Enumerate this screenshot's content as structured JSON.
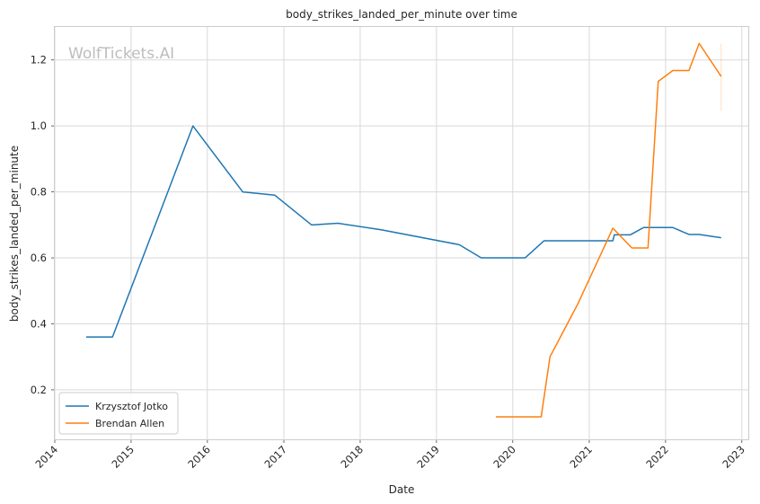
{
  "chart_data": {
    "type": "line",
    "title": "body_strikes_landed_per_minute over time",
    "xlabel": "Date",
    "ylabel": "body_strikes_landed_per_minute",
    "watermark": "WolfTickets.AI",
    "x_type": "date",
    "xlim": [
      "2014-01-01",
      "2023-02-01"
    ],
    "ylim": [
      0.05,
      1.3
    ],
    "x_ticks": [
      "2014",
      "2015",
      "2016",
      "2017",
      "2018",
      "2019",
      "2020",
      "2021",
      "2022",
      "2023"
    ],
    "y_ticks": [
      0.2,
      0.4,
      0.6,
      0.8,
      1.0,
      1.2
    ],
    "grid": true,
    "legend_position": "lower-left",
    "series": [
      {
        "name": "Krzysztof Jotko",
        "color": "#1f77b4",
        "points": [
          [
            "2014-05-31",
            0.36
          ],
          [
            "2014-10-04",
            0.36
          ],
          [
            "2015-10-24",
            1.0
          ],
          [
            "2016-06-18",
            0.8
          ],
          [
            "2016-11-19",
            0.79
          ],
          [
            "2017-05-13",
            0.7
          ],
          [
            "2017-09-16",
            0.705
          ],
          [
            "2018-04-14",
            0.685
          ],
          [
            "2019-04-20",
            0.64
          ],
          [
            "2019-08-03",
            0.6
          ],
          [
            "2020-02-29",
            0.6
          ],
          [
            "2020-05-30",
            0.652
          ],
          [
            "2021-04-24",
            0.652
          ],
          [
            "2021-05-01",
            0.67
          ],
          [
            "2021-07-17",
            0.67
          ],
          [
            "2021-09-18",
            0.692
          ],
          [
            "2022-02-05",
            0.692
          ],
          [
            "2022-04-23",
            0.671
          ],
          [
            "2022-06-11",
            0.671
          ],
          [
            "2022-09-24",
            0.661
          ]
        ]
      },
      {
        "name": "Brendan Allen",
        "color": "#ff7f0e",
        "points": [
          [
            "2019-10-12",
            0.118
          ],
          [
            "2020-05-16",
            0.118
          ],
          [
            "2020-06-27",
            0.3
          ],
          [
            "2020-11-07",
            0.46
          ],
          [
            "2021-04-24",
            0.69
          ],
          [
            "2021-07-24",
            0.63
          ],
          [
            "2021-10-09",
            0.63
          ],
          [
            "2021-11-27",
            1.135
          ],
          [
            "2022-02-05",
            1.168
          ],
          [
            "2022-04-23",
            1.168
          ],
          [
            "2022-06-11",
            1.25
          ],
          [
            "2022-09-24",
            1.15
          ]
        ],
        "band": {
          "x": "2022-09-24",
          "low": 1.045,
          "high": 1.25
        }
      }
    ]
  }
}
